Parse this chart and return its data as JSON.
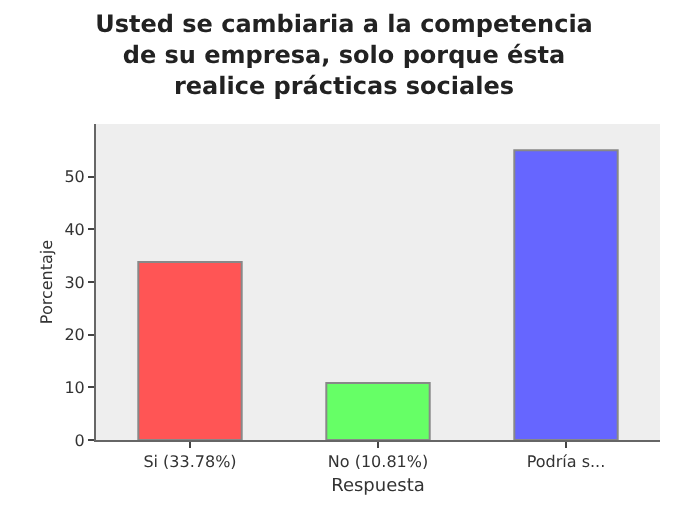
{
  "chart_data": {
    "type": "bar",
    "title": "Usted se cambiaria a la competencia de su empresa, solo porque ésta realice prácticas sociales",
    "xlabel": "Respuesta",
    "ylabel": "Porcentaje",
    "categories": [
      "Si (33.78%)",
      "No (10.81%)",
      "Podría s..."
    ],
    "values": [
      33.78,
      10.81,
      55
    ],
    "colors": [
      "#ff5555",
      "#66ff66",
      "#6666ff"
    ],
    "ylim": [
      0,
      60
    ],
    "yticks": [
      0,
      10,
      20,
      30,
      40,
      50
    ],
    "grid": false,
    "legend": false
  }
}
